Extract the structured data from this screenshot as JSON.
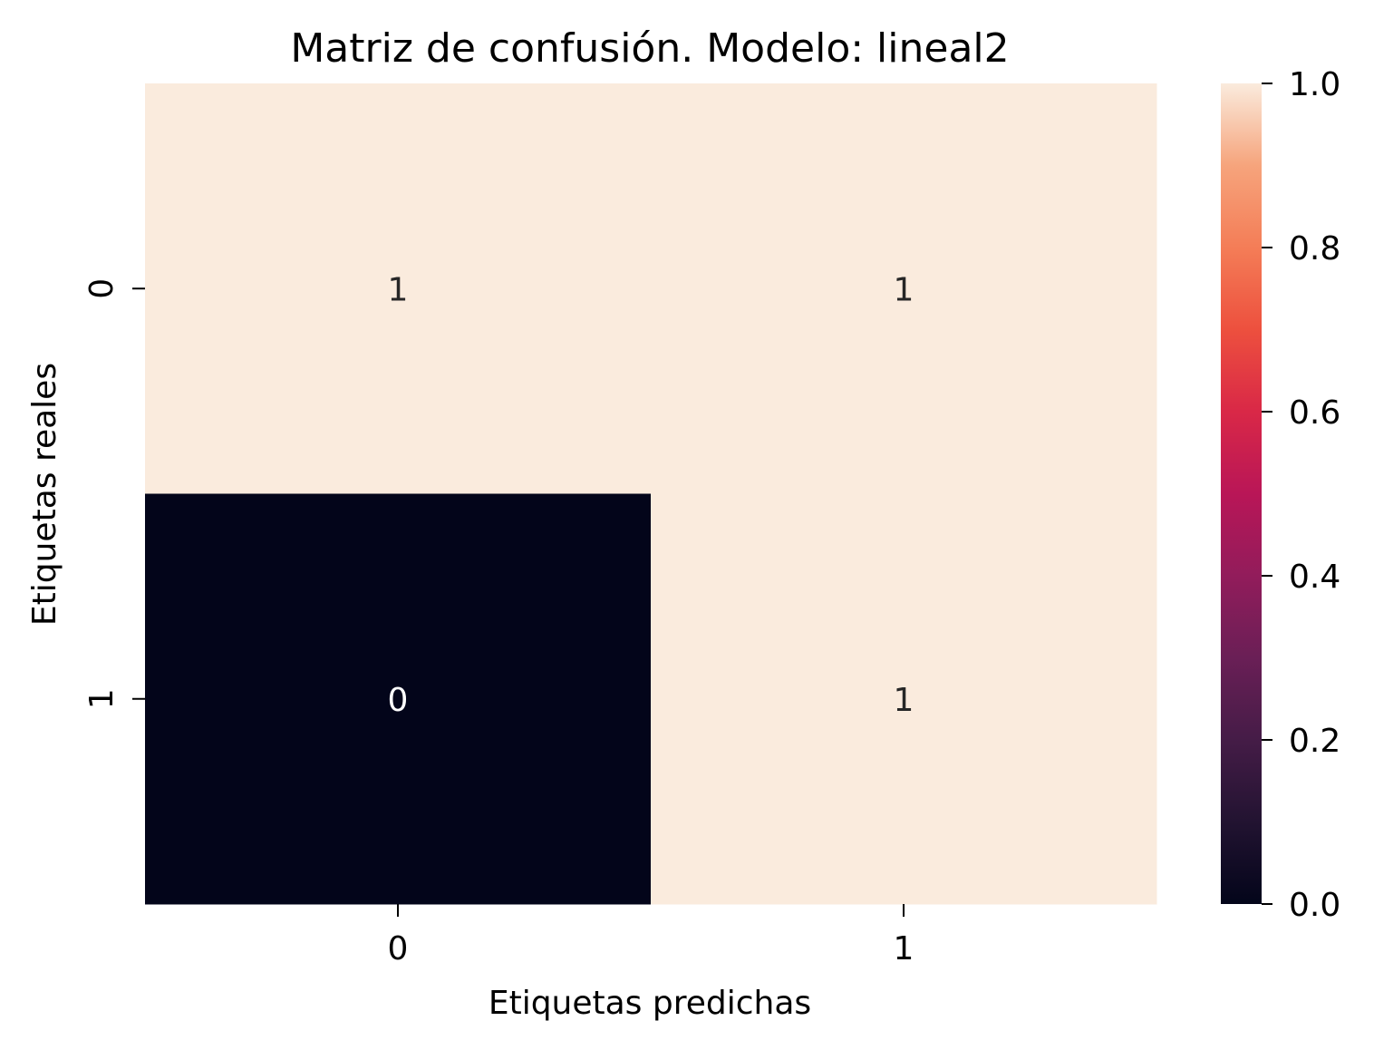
{
  "chart_data": {
    "type": "heatmap",
    "title": "Matriz de confusión. Modelo: lineal2",
    "xlabel": "Etiquetas predichas",
    "ylabel": "Etiquetas reales",
    "x_categories": [
      "0",
      "1"
    ],
    "y_categories": [
      "0",
      "1"
    ],
    "values": [
      [
        1,
        1
      ],
      [
        0,
        1
      ]
    ],
    "annotations": [
      [
        "1",
        "1"
      ],
      [
        "0",
        "1"
      ]
    ],
    "colorbar": {
      "range": [
        0.0,
        1.0
      ],
      "ticks": [
        "0.0",
        "0.2",
        "0.4",
        "0.6",
        "0.8",
        "1.0"
      ],
      "colormap": "rocket"
    },
    "colors": {
      "high": "#faebdd",
      "low": "#03051a",
      "text_on_light": "#262626",
      "text_on_dark": "#ffffff"
    }
  }
}
